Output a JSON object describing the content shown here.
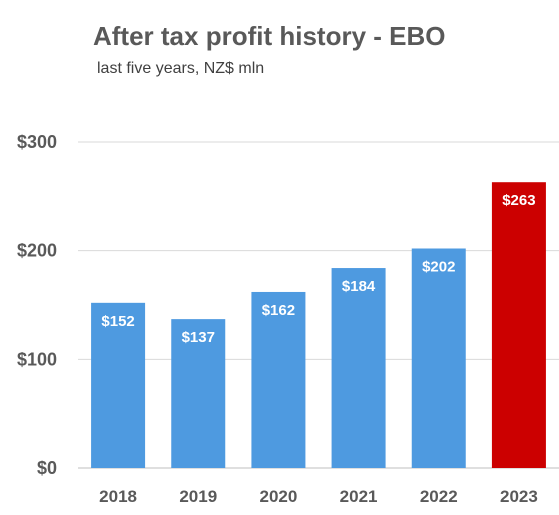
{
  "title": "After tax profit history - EBO",
  "subtitle": "last five years, NZ$ mln",
  "chart_data": {
    "type": "bar",
    "title": "After tax profit history - EBO",
    "subtitle": "last five years, NZ$ mln",
    "categories": [
      "2018",
      "2019",
      "2020",
      "2021",
      "2022",
      "2023"
    ],
    "values": [
      152,
      137,
      162,
      184,
      202,
      263
    ],
    "data_labels": [
      "$152",
      "$137",
      "$162",
      "$184",
      "$202",
      "$263"
    ],
    "bar_colors": [
      "#4e9ae0",
      "#4e9ae0",
      "#4e9ae0",
      "#4e9ae0",
      "#4e9ae0",
      "#cc0000"
    ],
    "yticks": [
      0,
      100,
      200,
      300
    ],
    "ytick_labels": [
      "$0",
      "$100",
      "$200",
      "$300"
    ],
    "ylim": [
      0,
      300
    ],
    "xlabel": "",
    "ylabel": "",
    "grid": true,
    "legend": "none"
  }
}
